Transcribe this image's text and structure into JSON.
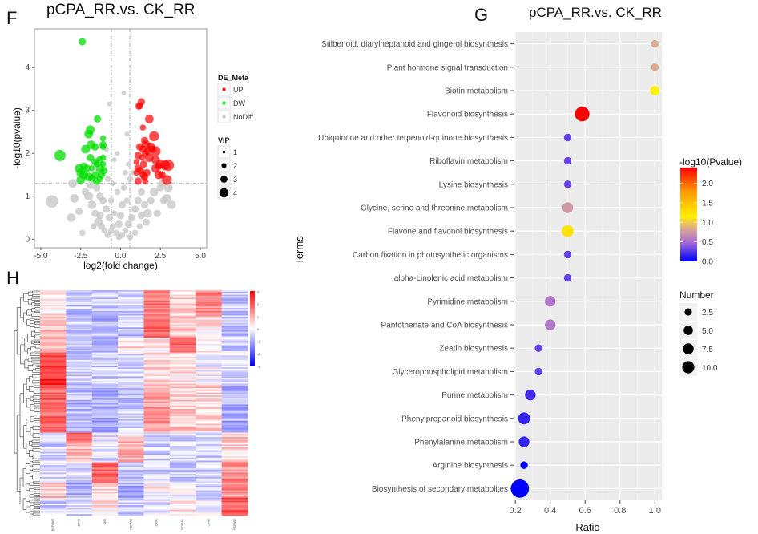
{
  "panels": {
    "F": {
      "letter": "F",
      "title": "pCPA_RR.vs. CK_RR"
    },
    "G": {
      "letter": "G",
      "title": "pCPA_RR.vs. CK_RR"
    },
    "H": {
      "letter": "H"
    }
  },
  "chart_data": [
    {
      "id": "F",
      "type": "scatter",
      "title": "pCPA_RR.vs. CK_RR",
      "xlabel": "log2(fold change)",
      "ylabel": "-log10(pvalue)",
      "xlim": [
        -5.4,
        5.4
      ],
      "ylim": [
        -0.2,
        4.9
      ],
      "xticks": [
        "-5.0",
        "-2.5",
        "0.0",
        "2.5",
        "5.0"
      ],
      "xtick_values": [
        -5,
        -2.5,
        0,
        2.5,
        5
      ],
      "yticks": [
        "0",
        "1",
        "2",
        "3",
        "4"
      ],
      "ytick_values": [
        0,
        1,
        2,
        3,
        4
      ],
      "threshold_lines": {
        "x": [
          -0.58,
          0.58
        ],
        "y": 1.3
      },
      "colors": {
        "UP": "#ff0000",
        "DW": "#00dd00",
        "NoDiff": "#c8c8c8"
      },
      "legend": {
        "color_title": "DE_Meta",
        "color_items": [
          "UP",
          "DW",
          "NoDiff"
        ],
        "size_title": "VIP",
        "size_items": [
          "1",
          "2",
          "3",
          "4"
        ]
      },
      "points_up": [
        [
          1.3,
          3.2,
          2
        ],
        [
          1.15,
          3.1,
          2
        ],
        [
          1.2,
          3.1,
          1.5
        ],
        [
          1.8,
          2.8,
          2.5
        ],
        [
          1.4,
          2.6,
          1.5
        ],
        [
          2.1,
          2.4,
          3
        ],
        [
          1.5,
          2.3,
          2
        ],
        [
          1.6,
          2.2,
          2.5
        ],
        [
          1.2,
          2.15,
          2
        ],
        [
          1.9,
          2.15,
          2.5
        ],
        [
          1.4,
          2.1,
          2
        ],
        [
          2.0,
          2.1,
          2
        ],
        [
          1.7,
          2.05,
          2
        ],
        [
          2.2,
          2.05,
          3
        ],
        [
          1.1,
          1.95,
          2
        ],
        [
          1.55,
          2.0,
          2
        ],
        [
          1.35,
          1.9,
          1.5
        ],
        [
          1.8,
          1.9,
          2.5
        ],
        [
          2.2,
          1.85,
          2.5
        ],
        [
          1.0,
          1.8,
          1.5
        ],
        [
          1.45,
          1.75,
          2
        ],
        [
          2.5,
          1.75,
          2.5
        ],
        [
          2.8,
          1.72,
          3
        ],
        [
          3.0,
          1.72,
          3.5
        ],
        [
          2.4,
          1.7,
          2
        ],
        [
          1.1,
          1.65,
          2
        ],
        [
          2.2,
          1.65,
          2.5
        ],
        [
          1.25,
          1.6,
          2
        ],
        [
          1.65,
          1.55,
          2
        ],
        [
          1.0,
          1.55,
          1.5
        ],
        [
          1.4,
          1.5,
          2
        ],
        [
          2.4,
          1.5,
          2.5
        ],
        [
          2.6,
          1.5,
          2
        ],
        [
          1.5,
          1.45,
          2
        ],
        [
          2.9,
          1.38,
          3
        ],
        [
          1.1,
          1.35,
          2
        ],
        [
          1.55,
          1.35,
          1.5
        ]
      ],
      "points_dw": [
        [
          -2.4,
          4.6,
          2
        ],
        [
          -1.45,
          2.8,
          2
        ],
        [
          -1.9,
          2.55,
          2.5
        ],
        [
          -2.0,
          2.45,
          2.5
        ],
        [
          -1.1,
          2.35,
          1.5
        ],
        [
          -2.2,
          2.1,
          2.5
        ],
        [
          -1.85,
          2.2,
          2.5
        ],
        [
          -1.6,
          2.15,
          2
        ],
        [
          -1.1,
          2.2,
          2
        ],
        [
          -1.1,
          2.15,
          1.5
        ],
        [
          -1.9,
          1.9,
          2
        ],
        [
          -1.1,
          1.9,
          1.5
        ],
        [
          -3.8,
          1.95,
          3.5
        ],
        [
          -1.6,
          1.8,
          2
        ],
        [
          -1.3,
          1.85,
          2
        ],
        [
          -2.3,
          1.7,
          2
        ],
        [
          -1.5,
          1.75,
          1.5
        ],
        [
          -1.1,
          1.75,
          1.5
        ],
        [
          -2.6,
          1.65,
          2.5
        ],
        [
          -2.1,
          1.65,
          2
        ],
        [
          -1.8,
          1.65,
          1.5
        ],
        [
          -1.3,
          1.65,
          2.5
        ],
        [
          -1.05,
          1.6,
          2
        ],
        [
          -2.3,
          1.5,
          2.5
        ],
        [
          -2.5,
          1.55,
          2.5
        ],
        [
          -1.6,
          1.5,
          2
        ],
        [
          -1.2,
          1.5,
          2
        ],
        [
          -2.0,
          1.45,
          2.5
        ],
        [
          -1.8,
          1.42,
          2
        ],
        [
          -2.5,
          1.38,
          2.5
        ],
        [
          -1.5,
          1.35,
          2
        ],
        [
          -1.3,
          1.4,
          1.5
        ]
      ],
      "points_nodiff": [
        [
          -4.3,
          0.88,
          4
        ],
        [
          -3.0,
          1.3,
          2.5
        ],
        [
          -2.9,
          0.95,
          2.5
        ],
        [
          -3.1,
          0.5,
          2.5
        ],
        [
          -2.2,
          1.1,
          2
        ],
        [
          -2.0,
          1.0,
          2.5
        ],
        [
          -1.8,
          0.8,
          2.5
        ],
        [
          -1.6,
          0.6,
          2
        ],
        [
          -1.4,
          0.4,
          2.5
        ],
        [
          -1.2,
          0.3,
          2
        ],
        [
          -1.0,
          0.2,
          1.5
        ],
        [
          -0.8,
          0.1,
          1.5
        ],
        [
          -1.5,
          1.2,
          2
        ],
        [
          -1.3,
          1.0,
          2
        ],
        [
          -1.1,
          0.9,
          2
        ],
        [
          -0.9,
          0.7,
          2
        ],
        [
          -0.7,
          0.5,
          2
        ],
        [
          -0.5,
          0.3,
          1.5
        ],
        [
          -0.3,
          0.15,
          1.5
        ],
        [
          -0.1,
          0.05,
          1.5
        ],
        [
          0.1,
          0.1,
          1.5
        ],
        [
          0.3,
          0.2,
          1.5
        ],
        [
          0.5,
          0.35,
          2
        ],
        [
          0.7,
          0.5,
          2
        ],
        [
          0.9,
          0.7,
          2
        ],
        [
          1.1,
          0.9,
          2
        ],
        [
          1.3,
          1.1,
          2
        ],
        [
          1.5,
          0.8,
          2
        ],
        [
          1.7,
          0.6,
          2.5
        ],
        [
          1.9,
          0.9,
          2
        ],
        [
          2.1,
          1.1,
          2.5
        ],
        [
          2.5,
          1.2,
          2
        ],
        [
          2.7,
          0.9,
          2
        ],
        [
          3.0,
          1.2,
          2.5
        ],
        [
          2.9,
          0.95,
          2.5
        ],
        [
          3.2,
          0.8,
          2.5
        ],
        [
          2.6,
          1.3,
          2
        ],
        [
          1.2,
          0.3,
          1.5
        ],
        [
          -0.4,
          0.6,
          1.5
        ],
        [
          -0.6,
          0.9,
          1.5
        ],
        [
          -0.2,
          1.1,
          1.5
        ],
        [
          0.2,
          1.2,
          1.5
        ],
        [
          0.4,
          0.9,
          1.5
        ],
        [
          0.6,
          1.4,
          1.5
        ],
        [
          -0.8,
          1.4,
          1.5
        ],
        [
          0.0,
          0.55,
          2
        ],
        [
          0.1,
          0.8,
          2
        ],
        [
          -0.1,
          0.35,
          2
        ],
        [
          -0.9,
          2.1,
          1.2
        ],
        [
          -0.4,
          1.85,
          1
        ],
        [
          0.2,
          3.4,
          1
        ],
        [
          -0.7,
          3.15,
          1
        ],
        [
          0.4,
          2.45,
          1
        ],
        [
          -0.2,
          2.0,
          1
        ],
        [
          0.5,
          1.75,
          1
        ],
        [
          0.8,
          1.55,
          1.2
        ],
        [
          -0.5,
          1.3,
          1.2
        ],
        [
          0.3,
          1.55,
          1.2
        ],
        [
          -1.7,
          0.3,
          1.5
        ],
        [
          -2.4,
          0.15,
          1.5
        ],
        [
          0.9,
          0.15,
          1.5
        ],
        [
          1.6,
          0.4,
          2
        ],
        [
          -1.3,
          0.55,
          2
        ],
        [
          1.3,
          0.55,
          2
        ],
        [
          -0.6,
          0.2,
          1.5
        ],
        [
          0.6,
          0.05,
          1.5
        ],
        [
          -1.9,
          1.25,
          2
        ],
        [
          2.3,
          0.6,
          2
        ],
        [
          -2.6,
          0.65,
          2
        ]
      ]
    },
    {
      "id": "G",
      "type": "scatter",
      "title": "pCPA_RR.vs. CK_RR",
      "xlabel": "Ratio",
      "ylabel": "Terms",
      "xlim": [
        0.19,
        1.04
      ],
      "xticks": [
        "0.2",
        "0.4",
        "0.6",
        "0.8",
        "1.0"
      ],
      "xtick_values": [
        0.2,
        0.4,
        0.6,
        0.8,
        1.0
      ],
      "categories": [
        "Stilbenoid, diarylheptanoid and gingerol biosynthesis",
        "Plant hormone signal transduction",
        "Biotin metabolism",
        "Flavonoid biosynthesis",
        "Ubiquinone and other terpenoid-quinone biosynthesis",
        "Riboflavin metabolism",
        "Lysine biosynthesis",
        "Glycine, serine and threonine metabolism",
        "Flavone and flavonol biosynthesis",
        "Carbon fixation in photosynthetic organisms",
        "alpha-Linolenic acid metabolism",
        "Pyrimidine metabolism",
        "Pantothenate and CoA biosynthesis",
        "Zeatin biosynthesis",
        "Glycerophospholipid metabolism",
        "Purine metabolism",
        "Phenylpropanoid biosynthesis",
        "Phenylalanine metabolism",
        "Arginine biosynthesis",
        "Biosynthesis of secondary metabolites"
      ],
      "ratio": [
        1.0,
        1.0,
        1.0,
        0.583,
        0.5,
        0.5,
        0.5,
        0.5,
        0.5,
        0.5,
        0.5,
        0.4,
        0.4,
        0.333,
        0.333,
        0.286,
        0.25,
        0.25,
        0.25,
        0.226
      ],
      "neglog10p": [
        0.85,
        0.85,
        1.15,
        2.4,
        0.3,
        0.3,
        0.3,
        0.75,
        1.25,
        0.3,
        0.3,
        0.55,
        0.55,
        0.3,
        0.3,
        0.2,
        0.15,
        0.15,
        0.0,
        0.0
      ],
      "number": [
        1,
        1,
        2,
        7,
        1,
        1,
        1,
        3,
        4,
        1,
        1,
        3,
        3,
        1,
        1,
        3,
        4,
        3,
        1,
        12
      ],
      "color_legend": {
        "title": "-log10(Pvalue)",
        "ticks": [
          "0.0",
          "0.5",
          "1.0",
          "1.5",
          "2.0"
        ],
        "tick_values": [
          0,
          0.5,
          1.0,
          1.5,
          2.0
        ],
        "range": [
          0,
          2.4
        ]
      },
      "size_legend": {
        "title": "Number",
        "labels": [
          "2.5",
          "5.0",
          "7.5",
          "10.0"
        ],
        "values": [
          2.5,
          5.0,
          7.5,
          10.0
        ]
      },
      "colors": {
        "low": "#0000ff",
        "mid1": "#b46fc0",
        "mid2": "#ffff00",
        "high": "#ff0000"
      }
    },
    {
      "id": "H",
      "type": "heatmap",
      "columns": [
        "PCPAWR",
        "CKR3",
        "CKR",
        "PCPAR3",
        "CKR1",
        "PCPAR1",
        "CKR2",
        "PCPAR2"
      ],
      "color_scale": {
        "ticks": [
          "3",
          "2",
          "1",
          "0",
          "-1",
          "-2",
          "-3"
        ],
        "min": -3,
        "max": 3,
        "low": "#0000ff",
        "mid": "#ffffff",
        "high": "#ff0000"
      },
      "row_blocks": [
        {
          "rows": 18,
          "levels": [
            0.4,
            -0.6,
            -0.5,
            -0.5,
            1.6,
            0.5,
            1.4,
            -0.7
          ]
        },
        {
          "rows": 14,
          "levels": [
            0.8,
            -0.7,
            -0.8,
            -0.6,
            1.7,
            0.7,
            0.3,
            -0.8
          ]
        },
        {
          "rows": 10,
          "levels": [
            0.9,
            -0.6,
            -0.7,
            0.4,
            0.2,
            1.6,
            0.0,
            -0.6
          ]
        },
        {
          "rows": 22,
          "levels": [
            2.4,
            -0.5,
            -0.5,
            -0.4,
            0.4,
            0.3,
            0.0,
            -0.4
          ]
        },
        {
          "rows": 32,
          "levels": [
            1.8,
            -0.8,
            -0.9,
            -0.6,
            1.1,
            0.6,
            0.5,
            -0.9
          ]
        },
        {
          "rows": 6,
          "levels": [
            -0.6,
            1.6,
            -0.2,
            0.3,
            -0.5,
            -0.4,
            -0.3,
            0.7
          ]
        },
        {
          "rows": 14,
          "levels": [
            -0.5,
            0.9,
            -0.3,
            0.9,
            -0.6,
            -0.5,
            -0.5,
            0.5
          ]
        },
        {
          "rows": 14,
          "levels": [
            -0.4,
            -0.3,
            1.8,
            -0.6,
            -0.4,
            -0.6,
            -0.5,
            1.3
          ]
        },
        {
          "rows": 10,
          "levels": [
            0.7,
            -0.9,
            0.4,
            -1.0,
            0.1,
            -0.2,
            -0.4,
            1.3
          ]
        },
        {
          "rows": 12,
          "levels": [
            -0.5,
            -0.4,
            0.3,
            -0.5,
            -0.3,
            0.3,
            -0.3,
            2.0
          ]
        }
      ]
    }
  ]
}
